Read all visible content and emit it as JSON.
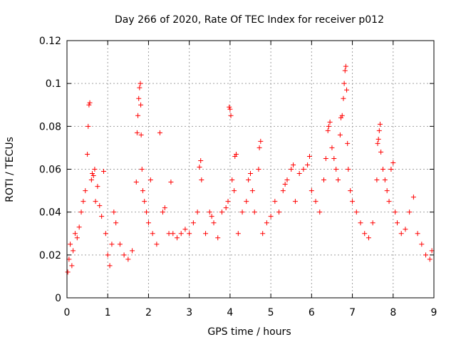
{
  "chart_data": {
    "type": "scatter",
    "title": "Day 266 of 2020, Rate Of TEC Index for receiver p012",
    "xlabel": "GPS time / hours",
    "ylabel": "ROTI / TECUs",
    "xlim": [
      0,
      9
    ],
    "ylim": [
      0,
      0.12
    ],
    "xticks": [
      0,
      1,
      2,
      3,
      4,
      5,
      6,
      7,
      8,
      9
    ],
    "xtick_labels": [
      "0",
      "1",
      "2",
      "3",
      "4",
      "5",
      "6",
      "7",
      "8",
      "9"
    ],
    "yticks": [
      0,
      0.02,
      0.04,
      0.06,
      0.08,
      0.1,
      0.12
    ],
    "ytick_labels": [
      "0",
      "0.02",
      "0.04",
      "0.06",
      "0.08",
      "0.1",
      "0.12"
    ],
    "grid": true,
    "marker": "+",
    "color": "#ff0000",
    "series": [
      {
        "name": "ROTI",
        "points": [
          [
            0.02,
            0.012
          ],
          [
            0.05,
            0.018
          ],
          [
            0.08,
            0.025
          ],
          [
            0.12,
            0.015
          ],
          [
            0.15,
            0.022
          ],
          [
            0.2,
            0.03
          ],
          [
            0.25,
            0.028
          ],
          [
            0.3,
            0.033
          ],
          [
            0.35,
            0.04
          ],
          [
            0.4,
            0.045
          ],
          [
            0.45,
            0.05
          ],
          [
            0.5,
            0.067
          ],
          [
            0.52,
            0.08
          ],
          [
            0.54,
            0.09
          ],
          [
            0.56,
            0.091
          ],
          [
            0.6,
            0.055
          ],
          [
            0.62,
            0.058
          ],
          [
            0.65,
            0.057
          ],
          [
            0.68,
            0.06
          ],
          [
            0.7,
            0.045
          ],
          [
            0.75,
            0.052
          ],
          [
            0.8,
            0.043
          ],
          [
            0.85,
            0.038
          ],
          [
            0.9,
            0.059
          ],
          [
            0.95,
            0.03
          ],
          [
            1.0,
            0.02
          ],
          [
            1.05,
            0.015
          ],
          [
            1.1,
            0.025
          ],
          [
            1.15,
            0.04
          ],
          [
            1.2,
            0.035
          ],
          [
            1.3,
            0.025
          ],
          [
            1.4,
            0.02
          ],
          [
            1.5,
            0.018
          ],
          [
            1.6,
            0.022
          ],
          [
            1.7,
            0.054
          ],
          [
            1.72,
            0.077
          ],
          [
            1.74,
            0.085
          ],
          [
            1.76,
            0.093
          ],
          [
            1.78,
            0.098
          ],
          [
            1.8,
            0.1
          ],
          [
            1.81,
            0.09
          ],
          [
            1.82,
            0.076
          ],
          [
            1.84,
            0.06
          ],
          [
            1.86,
            0.05
          ],
          [
            1.9,
            0.045
          ],
          [
            1.95,
            0.04
          ],
          [
            2.0,
            0.035
          ],
          [
            2.05,
            0.055
          ],
          [
            2.1,
            0.03
          ],
          [
            2.2,
            0.025
          ],
          [
            2.28,
            0.077
          ],
          [
            2.35,
            0.04
          ],
          [
            2.4,
            0.042
          ],
          [
            2.5,
            0.03
          ],
          [
            2.55,
            0.054
          ],
          [
            2.6,
            0.03
          ],
          [
            2.7,
            0.028
          ],
          [
            2.8,
            0.03
          ],
          [
            2.9,
            0.032
          ],
          [
            3.0,
            0.03
          ],
          [
            3.1,
            0.035
          ],
          [
            3.2,
            0.04
          ],
          [
            3.25,
            0.061
          ],
          [
            3.28,
            0.064
          ],
          [
            3.3,
            0.055
          ],
          [
            3.4,
            0.03
          ],
          [
            3.5,
            0.04
          ],
          [
            3.55,
            0.038
          ],
          [
            3.6,
            0.035
          ],
          [
            3.7,
            0.028
          ],
          [
            3.8,
            0.04
          ],
          [
            3.9,
            0.042
          ],
          [
            3.95,
            0.045
          ],
          [
            3.98,
            0.089
          ],
          [
            4.0,
            0.088
          ],
          [
            4.02,
            0.085
          ],
          [
            4.05,
            0.055
          ],
          [
            4.1,
            0.05
          ],
          [
            4.12,
            0.066
          ],
          [
            4.15,
            0.067
          ],
          [
            4.2,
            0.03
          ],
          [
            4.3,
            0.04
          ],
          [
            4.4,
            0.045
          ],
          [
            4.45,
            0.055
          ],
          [
            4.5,
            0.058
          ],
          [
            4.55,
            0.05
          ],
          [
            4.6,
            0.04
          ],
          [
            4.7,
            0.06
          ],
          [
            4.72,
            0.07
          ],
          [
            4.75,
            0.073
          ],
          [
            4.8,
            0.03
          ],
          [
            4.9,
            0.035
          ],
          [
            5.0,
            0.038
          ],
          [
            5.1,
            0.045
          ],
          [
            5.2,
            0.04
          ],
          [
            5.3,
            0.05
          ],
          [
            5.35,
            0.053
          ],
          [
            5.4,
            0.055
          ],
          [
            5.5,
            0.06
          ],
          [
            5.55,
            0.062
          ],
          [
            5.6,
            0.045
          ],
          [
            5.7,
            0.058
          ],
          [
            5.8,
            0.06
          ],
          [
            5.9,
            0.062
          ],
          [
            5.95,
            0.066
          ],
          [
            6.0,
            0.05
          ],
          [
            6.1,
            0.045
          ],
          [
            6.2,
            0.04
          ],
          [
            6.3,
            0.055
          ],
          [
            6.35,
            0.065
          ],
          [
            6.4,
            0.078
          ],
          [
            6.42,
            0.08
          ],
          [
            6.45,
            0.082
          ],
          [
            6.5,
            0.07
          ],
          [
            6.55,
            0.065
          ],
          [
            6.6,
            0.06
          ],
          [
            6.65,
            0.055
          ],
          [
            6.7,
            0.076
          ],
          [
            6.72,
            0.084
          ],
          [
            6.75,
            0.085
          ],
          [
            6.78,
            0.093
          ],
          [
            6.8,
            0.1
          ],
          [
            6.82,
            0.106
          ],
          [
            6.84,
            0.108
          ],
          [
            6.86,
            0.097
          ],
          [
            6.88,
            0.072
          ],
          [
            6.9,
            0.06
          ],
          [
            6.95,
            0.05
          ],
          [
            7.0,
            0.045
          ],
          [
            7.1,
            0.04
          ],
          [
            7.2,
            0.035
          ],
          [
            7.3,
            0.03
          ],
          [
            7.4,
            0.028
          ],
          [
            7.5,
            0.035
          ],
          [
            7.6,
            0.055
          ],
          [
            7.62,
            0.072
          ],
          [
            7.64,
            0.074
          ],
          [
            7.66,
            0.078
          ],
          [
            7.68,
            0.081
          ],
          [
            7.7,
            0.068
          ],
          [
            7.75,
            0.06
          ],
          [
            7.8,
            0.055
          ],
          [
            7.85,
            0.05
          ],
          [
            7.9,
            0.045
          ],
          [
            7.95,
            0.06
          ],
          [
            8.0,
            0.063
          ],
          [
            8.05,
            0.04
          ],
          [
            8.1,
            0.035
          ],
          [
            8.2,
            0.03
          ],
          [
            8.3,
            0.032
          ],
          [
            8.4,
            0.04
          ],
          [
            8.5,
            0.047
          ],
          [
            8.6,
            0.03
          ],
          [
            8.7,
            0.025
          ],
          [
            8.8,
            0.02
          ],
          [
            8.9,
            0.018
          ],
          [
            8.95,
            0.022
          ]
        ]
      }
    ]
  }
}
